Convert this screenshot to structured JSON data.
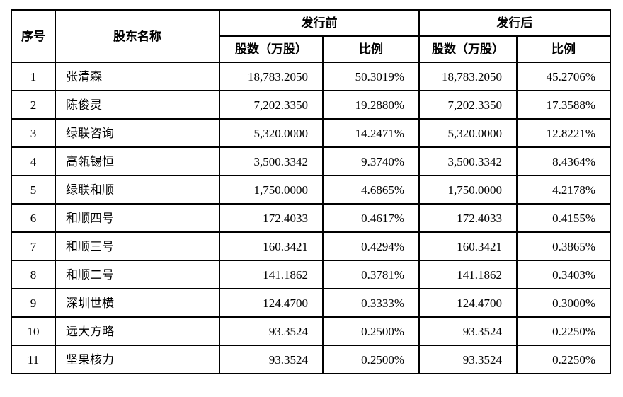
{
  "table": {
    "headers": {
      "col_index": "序号",
      "col_name": "股东名称",
      "group_pre": "发行前",
      "group_post": "发行后",
      "col_shares_pre": "股数（万股）",
      "col_ratio_pre": "比例",
      "col_shares_post": "股数（万股）",
      "col_ratio_post": "比例"
    },
    "rows": [
      {
        "index": "1",
        "name": "张清森",
        "pre_shares": "18,783.2050",
        "pre_ratio": "50.3019%",
        "post_shares": "18,783.2050",
        "post_ratio": "45.2706%"
      },
      {
        "index": "2",
        "name": "陈俊灵",
        "pre_shares": "7,202.3350",
        "pre_ratio": "19.2880%",
        "post_shares": "7,202.3350",
        "post_ratio": "17.3588%"
      },
      {
        "index": "3",
        "name": "绿联咨询",
        "pre_shares": "5,320.0000",
        "pre_ratio": "14.2471%",
        "post_shares": "5,320.0000",
        "post_ratio": "12.8221%"
      },
      {
        "index": "4",
        "name": "高瓴锡恒",
        "pre_shares": "3,500.3342",
        "pre_ratio": "9.3740%",
        "post_shares": "3,500.3342",
        "post_ratio": "8.4364%"
      },
      {
        "index": "5",
        "name": "绿联和顺",
        "pre_shares": "1,750.0000",
        "pre_ratio": "4.6865%",
        "post_shares": "1,750.0000",
        "post_ratio": "4.2178%"
      },
      {
        "index": "6",
        "name": "和顺四号",
        "pre_shares": "172.4033",
        "pre_ratio": "0.4617%",
        "post_shares": "172.4033",
        "post_ratio": "0.4155%"
      },
      {
        "index": "7",
        "name": "和顺三号",
        "pre_shares": "160.3421",
        "pre_ratio": "0.4294%",
        "post_shares": "160.3421",
        "post_ratio": "0.3865%"
      },
      {
        "index": "8",
        "name": "和顺二号",
        "pre_shares": "141.1862",
        "pre_ratio": "0.3781%",
        "post_shares": "141.1862",
        "post_ratio": "0.3403%"
      },
      {
        "index": "9",
        "name": "深圳世横",
        "pre_shares": "124.4700",
        "pre_ratio": "0.3333%",
        "post_shares": "124.4700",
        "post_ratio": "0.3000%"
      },
      {
        "index": "10",
        "name": "远大方略",
        "pre_shares": "93.3524",
        "pre_ratio": "0.2500%",
        "post_shares": "93.3524",
        "post_ratio": "0.2250%"
      },
      {
        "index": "11",
        "name": "坚果核力",
        "pre_shares": "93.3524",
        "pre_ratio": "0.2500%",
        "post_shares": "93.3524",
        "post_ratio": "0.2250%"
      }
    ]
  }
}
